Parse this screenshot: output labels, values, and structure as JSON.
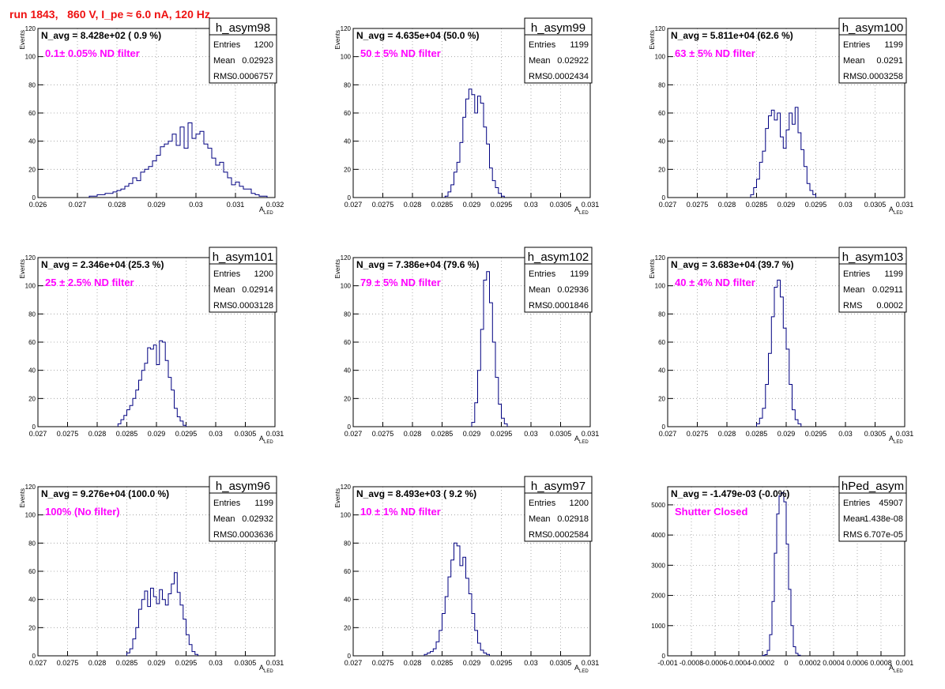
{
  "page": {
    "run_title": "run 1843,   860 V, I_pe ≈ 6.0 nA, 120 Hz"
  },
  "colors": {
    "run_title": "#ee1111",
    "histogram_line": "#000080",
    "filter_label": "#ff00ff",
    "grid": "#999999"
  },
  "chart_data": [
    {
      "type": "bar",
      "name": "h_asym98",
      "navg": "N_avg = 8.428e+02 ( 0.9 %)",
      "filter": "0.1± 0.05% ND filter",
      "stats": {
        "entries": "1200",
        "mean": "0.02923",
        "rms": "0.0006757"
      },
      "xlabel": "A",
      "xlabel_sub": "LED",
      "ylabel": "Events",
      "xlim": [
        0.026,
        0.032
      ],
      "ylim": [
        0,
        120
      ],
      "xticks": [
        "0.026",
        "0.027",
        "0.028",
        "0.029",
        "0.03",
        "0.031",
        "0.032"
      ],
      "yticks": [
        "0",
        "20",
        "40",
        "60",
        "80",
        "100",
        "120"
      ],
      "bins": {
        "start": 0.0273,
        "width": 0.0001,
        "counts": [
          1,
          1,
          2,
          2,
          3,
          3,
          4,
          5,
          6,
          8,
          10,
          14,
          12,
          18,
          20,
          22,
          26,
          30,
          36,
          38,
          40,
          45,
          37,
          50,
          35,
          53,
          42,
          45,
          47,
          38,
          35,
          28,
          23,
          25,
          18,
          14,
          9,
          11,
          8,
          6,
          6,
          3,
          2,
          1,
          1
        ]
      }
    },
    {
      "type": "bar",
      "name": "h_asym99",
      "navg": "N_avg = 4.635e+04 (50.0 %)",
      "filter": "50 ± 5% ND filter",
      "stats": {
        "entries": "1199",
        "mean": "0.02922",
        "rms": "0.0002434"
      },
      "xlabel": "A",
      "xlabel_sub": "LED",
      "ylabel": "Events",
      "xlim": [
        0.027,
        0.031
      ],
      "ylim": [
        0,
        120
      ],
      "xticks": [
        "0.027",
        "0.0275",
        "0.028",
        "0.0285",
        "0.029",
        "0.0295",
        "0.03",
        "0.0305",
        "0.031"
      ],
      "yticks": [
        "0",
        "20",
        "40",
        "60",
        "80",
        "100",
        "120"
      ],
      "bins": {
        "start": 0.02855,
        "width": 5e-05,
        "counts": [
          1,
          4,
          9,
          18,
          25,
          39,
          57,
          70,
          77,
          73,
          60,
          72,
          67,
          50,
          38,
          21,
          12,
          7,
          3,
          1
        ]
      }
    },
    {
      "type": "bar",
      "name": "h_asym100",
      "navg": "N_avg = 5.811e+04 (62.6 %)",
      "filter": "63 ± 5% ND filter",
      "stats": {
        "entries": "1199",
        "mean": "0.0291",
        "rms": "0.0003258"
      },
      "xlabel": "A",
      "xlabel_sub": "LED",
      "ylabel": "Events",
      "xlim": [
        0.027,
        0.031
      ],
      "ylim": [
        0,
        120
      ],
      "xticks": [
        "0.027",
        "0.0275",
        "0.028",
        "0.0285",
        "0.029",
        "0.0295",
        "0.03",
        "0.0305",
        "0.031"
      ],
      "yticks": [
        "0",
        "20",
        "40",
        "60",
        "80",
        "100",
        "120"
      ],
      "bins": {
        "start": 0.0284,
        "width": 5e-05,
        "counts": [
          2,
          7,
          13,
          25,
          33,
          49,
          58,
          62,
          55,
          60,
          43,
          35,
          48,
          60,
          52,
          64,
          46,
          34,
          22,
          10,
          5,
          2
        ]
      }
    },
    {
      "type": "bar",
      "name": "h_asym101",
      "navg": "N_avg = 2.346e+04 (25.3 %)",
      "filter": "25 ± 2.5% ND filter",
      "stats": {
        "entries": "1200",
        "mean": "0.02914",
        "rms": "0.0003128"
      },
      "xlabel": "A",
      "xlabel_sub": "LED",
      "ylabel": "Events",
      "xlim": [
        0.027,
        0.031
      ],
      "ylim": [
        0,
        120
      ],
      "xticks": [
        "0.027",
        "0.0275",
        "0.028",
        "0.0285",
        "0.029",
        "0.0295",
        "0.03",
        "0.0305",
        "0.031"
      ],
      "yticks": [
        "0",
        "20",
        "40",
        "60",
        "80",
        "100",
        "120"
      ],
      "bins": {
        "start": 0.02835,
        "width": 5e-05,
        "counts": [
          2,
          5,
          8,
          12,
          15,
          20,
          26,
          33,
          40,
          45,
          56,
          55,
          58,
          44,
          61,
          60,
          47,
          35,
          26,
          13,
          7,
          4,
          1
        ]
      }
    },
    {
      "type": "bar",
      "name": "h_asym102",
      "navg": "N_avg = 7.386e+04 (79.6 %)",
      "filter": "79 ± 5% ND filter",
      "stats": {
        "entries": "1199",
        "mean": "0.02936",
        "rms": "0.0001846"
      },
      "xlabel": "A",
      "xlabel_sub": "LED",
      "ylabel": "Events",
      "xlim": [
        0.027,
        0.031
      ],
      "ylim": [
        0,
        120
      ],
      "xticks": [
        "0.027",
        "0.0275",
        "0.028",
        "0.0285",
        "0.029",
        "0.0295",
        "0.03",
        "0.0305",
        "0.031"
      ],
      "yticks": [
        "0",
        "20",
        "40",
        "60",
        "80",
        "100",
        "120"
      ],
      "bins": {
        "start": 0.029,
        "width": 5e-05,
        "counts": [
          3,
          17,
          40,
          69,
          104,
          110,
          88,
          60,
          35,
          16,
          6,
          2
        ]
      }
    },
    {
      "type": "bar",
      "name": "h_asym103",
      "navg": "N_avg = 3.683e+04 (39.7 %)",
      "filter": "40 ± 4% ND filter",
      "stats": {
        "entries": "1199",
        "mean": "0.02911",
        "rms": "0.0002"
      },
      "xlabel": "A",
      "xlabel_sub": "LED",
      "ylabel": "Events",
      "xlim": [
        0.027,
        0.031
      ],
      "ylim": [
        0,
        120
      ],
      "xticks": [
        "0.027",
        "0.0275",
        "0.028",
        "0.0285",
        "0.029",
        "0.0295",
        "0.03",
        "0.0305",
        "0.031"
      ],
      "yticks": [
        "0",
        "20",
        "40",
        "60",
        "80",
        "100",
        "120"
      ],
      "bins": {
        "start": 0.0285,
        "width": 5e-05,
        "counts": [
          2,
          6,
          13,
          30,
          52,
          78,
          99,
          104,
          92,
          70,
          55,
          30,
          12,
          5,
          2
        ]
      }
    },
    {
      "type": "bar",
      "name": "h_asym96",
      "navg": "N_avg = 9.276e+04 (100.0 %)",
      "filter": "100% (No filter)",
      "stats": {
        "entries": "1199",
        "mean": "0.02932",
        "rms": "0.0003636"
      },
      "xlabel": "A",
      "xlabel_sub": "LED",
      "ylabel": "Events",
      "xlim": [
        0.027,
        0.031
      ],
      "ylim": [
        0,
        120
      ],
      "xticks": [
        "0.027",
        "0.0275",
        "0.028",
        "0.0285",
        "0.029",
        "0.0295",
        "0.03",
        "0.0305",
        "0.031"
      ],
      "yticks": [
        "0",
        "20",
        "40",
        "60",
        "80",
        "100",
        "120"
      ],
      "bins": {
        "start": 0.0285,
        "width": 5e-05,
        "counts": [
          2,
          5,
          12,
          20,
          33,
          40,
          46,
          35,
          48,
          42,
          37,
          47,
          40,
          36,
          44,
          51,
          59,
          45,
          36,
          26,
          15,
          8,
          3,
          1
        ]
      }
    },
    {
      "type": "bar",
      "name": "h_asym97",
      "navg": "N_avg = 8.493e+03 ( 9.2 %)",
      "filter": "10 ± 1% ND filter",
      "stats": {
        "entries": "1200",
        "mean": "0.02918",
        "rms": "0.0002584"
      },
      "xlabel": "A",
      "xlabel_sub": "LED",
      "ylabel": "Events",
      "xlim": [
        0.027,
        0.031
      ],
      "ylim": [
        0,
        120
      ],
      "xticks": [
        "0.027",
        "0.0275",
        "0.028",
        "0.0285",
        "0.029",
        "0.0295",
        "0.03",
        "0.0305",
        "0.031"
      ],
      "yticks": [
        "0",
        "20",
        "40",
        "60",
        "80",
        "100",
        "120"
      ],
      "bins": {
        "start": 0.0282,
        "width": 5e-05,
        "counts": [
          1,
          2,
          3,
          5,
          10,
          18,
          30,
          42,
          56,
          68,
          80,
          78,
          64,
          70,
          55,
          44,
          30,
          18,
          9,
          4,
          2,
          1
        ]
      }
    },
    {
      "type": "bar",
      "name": "hPed_asym",
      "navg": "N_avg = -1.479e-03 (-0.0%)",
      "filter": "Shutter Closed",
      "stats": {
        "entries": "45907",
        "mean": "-1.438e-08",
        "rms": "6.707e-05"
      },
      "xlabel": "A",
      "xlabel_sub": "LED",
      "ylabel": "",
      "xlim": [
        -0.001,
        0.001
      ],
      "ylim": [
        0,
        5600
      ],
      "xticks": [
        "-0.001",
        "-0.0008",
        "-0.0006",
        "-0.0004",
        "-0.0002",
        "0",
        "0.0002",
        "0.0004",
        "0.0006",
        "0.0008",
        "0.001"
      ],
      "yticks": [
        "0",
        "1000",
        "2000",
        "3000",
        "4000",
        "5000"
      ],
      "bins": {
        "start": -0.0002,
        "width": 2e-05,
        "counts": [
          10,
          40,
          180,
          700,
          1800,
          3400,
          4700,
          5300,
          5400,
          5100,
          3700,
          2200,
          1000,
          300,
          80,
          20
        ]
      }
    }
  ]
}
